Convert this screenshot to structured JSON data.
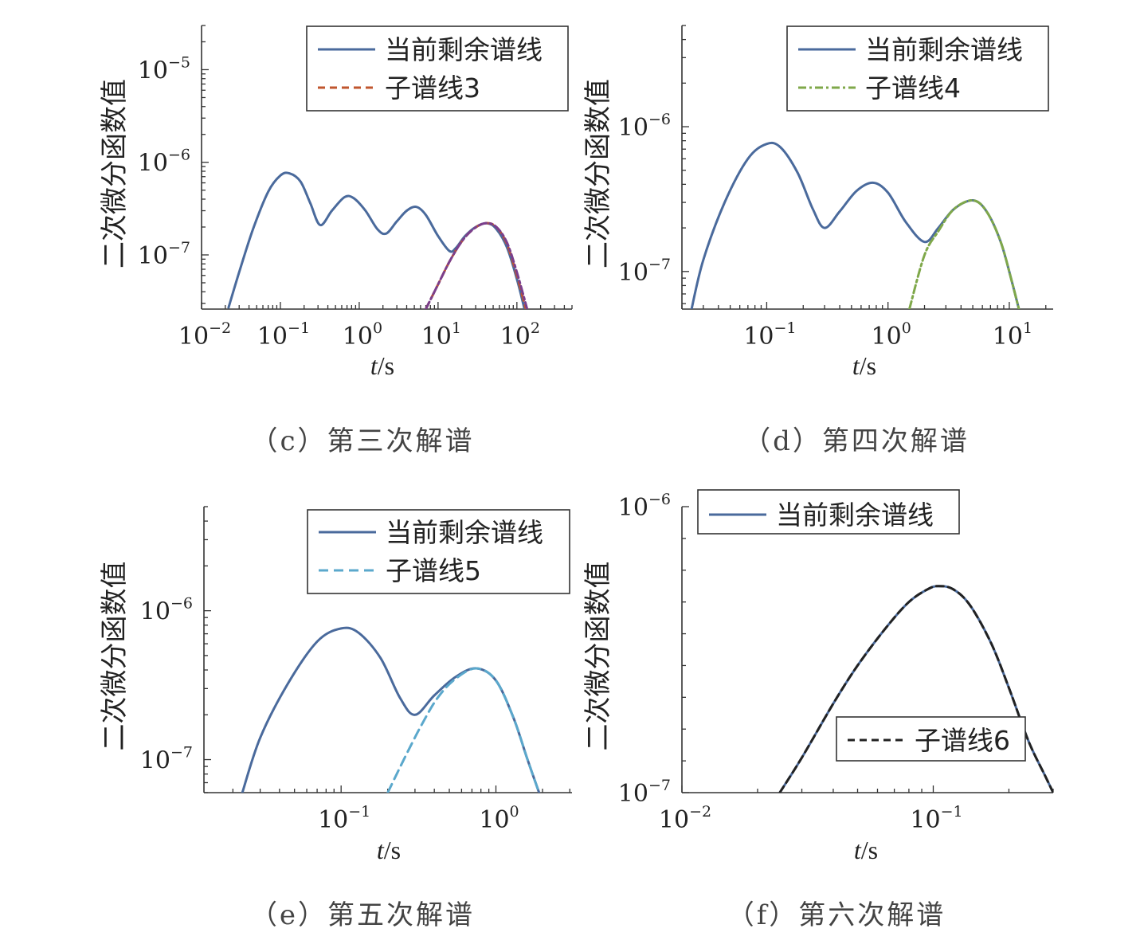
{
  "figure": {
    "subplots": [
      {
        "caption": "（c）第三次解谱",
        "ylabel": "二次微分函数值",
        "xlabel": "t/s",
        "legend_position": "top-right"
      },
      {
        "caption": "（d）第四次解谱",
        "ylabel": "二次微分函数值",
        "xlabel": "t/s",
        "legend_position": "top-right"
      },
      {
        "caption": "（e）第五次解谱",
        "ylabel": "二次微分函数值",
        "xlabel": "t/s",
        "legend_position": "top-right"
      },
      {
        "caption": "（f）第六次解谱",
        "ylabel": "二次微分函数值",
        "xlabel": "t/s",
        "legend_position": "top-left / bottom-right"
      }
    ]
  },
  "chart_data": [
    {
      "type": "line",
      "title": "（c）第三次解谱",
      "xlabel": "t/s",
      "ylabel": "二次微分函数值",
      "xscale": "log",
      "yscale": "log",
      "xlim": [
        0.01,
        500
      ],
      "ylim": [
        2.6e-08,
        3e-05
      ],
      "xticks": [
        0.01,
        0.1,
        1,
        10,
        100
      ],
      "xtick_labels": [
        {
          "base": "10",
          "exp": "−2"
        },
        {
          "base": "10",
          "exp": "−1"
        },
        {
          "base": "10",
          "exp": "0"
        },
        {
          "base": "10",
          "exp": "1"
        },
        {
          "base": "10",
          "exp": "2"
        }
      ],
      "yticks": [
        1e-07,
        1e-06,
        1e-05
      ],
      "ytick_labels": [
        {
          "base": "10",
          "exp": "−7"
        },
        {
          "base": "10",
          "exp": "−6"
        },
        {
          "base": "10",
          "exp": "−5"
        }
      ],
      "legend": [
        "当前剩余谱线",
        "子谱线3"
      ],
      "series": [
        {
          "name": "当前剩余谱线",
          "color": "#4a6a9c",
          "dash": "",
          "x": [
            0.022,
            0.03,
            0.045,
            0.07,
            0.1,
            0.13,
            0.18,
            0.24,
            0.32,
            0.45,
            0.65,
            0.85,
            1.2,
            1.7,
            2.2,
            3.0,
            4.0,
            5.3,
            7.0,
            10,
            14,
            17,
            22,
            30,
            42,
            55,
            75,
            100,
            125
          ],
          "y": [
            2.7e-08,
            6.5e-08,
            1.9e-07,
            4.8e-07,
            7.2e-07,
            7.6e-07,
            6.2e-07,
            3.6e-07,
            2.1e-07,
            3e-07,
            4.2e-07,
            4.1e-07,
            3e-07,
            1.9e-07,
            1.7e-07,
            2.3e-07,
            3e-07,
            3.3e-07,
            2.7e-07,
            1.6e-07,
            1.1e-07,
            1.2e-07,
            1.6e-07,
            2e-07,
            2.2e-07,
            1.9e-07,
            1.2e-07,
            5.5e-08,
            2.6e-08
          ]
        },
        {
          "name": "子谱线3",
          "color": "#c0562e",
          "dash": "9 6",
          "x": [
            7.0,
            10,
            14,
            20,
            28,
            40,
            55,
            75,
            100,
            130
          ],
          "y": [
            2.6e-08,
            4.8e-08,
            8.5e-08,
            1.4e-07,
            1.9e-07,
            2.2e-07,
            2e-07,
            1.3e-07,
            6e-08,
            2.6e-08
          ]
        },
        {
          "name": "",
          "color": "#7b3f8c",
          "dash": "10 4 3 4",
          "x": [
            7.0,
            10,
            14,
            20,
            28,
            40,
            55,
            75,
            100,
            135
          ],
          "y": [
            2.6e-08,
            4.8e-08,
            8.5e-08,
            1.4e-07,
            1.9e-07,
            2.2e-07,
            2e-07,
            1.35e-07,
            6.5e-08,
            2.6e-08
          ]
        }
      ]
    },
    {
      "type": "line",
      "title": "（d）第四次解谱",
      "xlabel": "t/s",
      "ylabel": "二次微分函数值",
      "xscale": "log",
      "yscale": "log",
      "xlim": [
        0.02,
        23
      ],
      "ylim": [
        5.5e-08,
        5e-06
      ],
      "xticks": [
        0.1,
        1,
        10
      ],
      "xtick_labels": [
        {
          "base": "10",
          "exp": "−1"
        },
        {
          "base": "10",
          "exp": "0"
        },
        {
          "base": "10",
          "exp": "1"
        }
      ],
      "yticks": [
        1e-07,
        1e-06
      ],
      "ytick_labels": [
        {
          "base": "10",
          "exp": "−7"
        },
        {
          "base": "10",
          "exp": "−6"
        }
      ],
      "legend": [
        "当前剩余谱线",
        "子谱线4"
      ],
      "series": [
        {
          "name": "当前剩余谱线",
          "color": "#4a6a9c",
          "dash": "",
          "x": [
            0.024,
            0.03,
            0.045,
            0.07,
            0.1,
            0.13,
            0.18,
            0.24,
            0.3,
            0.4,
            0.55,
            0.75,
            1.0,
            1.4,
            2.0,
            2.6,
            3.5,
            5.0,
            6.5,
            8.5,
            10.5,
            12
          ],
          "y": [
            5.5e-08,
            1.2e-07,
            3e-07,
            6e-07,
            7.6e-07,
            7.2e-07,
            4.8e-07,
            2.7e-07,
            2e-07,
            2.6e-07,
            3.6e-07,
            4.1e-07,
            3.5e-07,
            2.2e-07,
            1.6e-07,
            2e-07,
            2.7e-07,
            3.1e-07,
            2.6e-07,
            1.6e-07,
            8.5e-08,
            5.5e-08
          ]
        },
        {
          "name": "子谱线4",
          "color": "#7fa84a",
          "dash": "10 4 3 4",
          "x": [
            1.5,
            2.0,
            2.6,
            3.5,
            5.0,
            6.5,
            8.5,
            10.5,
            12
          ],
          "y": [
            5.5e-08,
            1.3e-07,
            1.9e-07,
            2.7e-07,
            3.1e-07,
            2.6e-07,
            1.6e-07,
            8.5e-08,
            5.5e-08
          ]
        }
      ]
    },
    {
      "type": "line",
      "title": "（e）第五次解谱",
      "xlabel": "t/s",
      "ylabel": "二次微分函数值",
      "xscale": "log",
      "yscale": "log",
      "xlim": [
        0.013,
        3.1
      ],
      "ylim": [
        6e-08,
        5e-06
      ],
      "xticks": [
        0.1,
        1
      ],
      "xtick_labels": [
        {
          "base": "10",
          "exp": "−1"
        },
        {
          "base": "10",
          "exp": "0"
        }
      ],
      "yticks": [
        1e-07,
        1e-06
      ],
      "ytick_labels": [
        {
          "base": "10",
          "exp": "−7"
        },
        {
          "base": "10",
          "exp": "−6"
        }
      ],
      "legend": [
        "当前剩余谱线",
        "子谱线5"
      ],
      "series": [
        {
          "name": "当前剩余谱线",
          "color": "#4a6a9c",
          "dash": "",
          "x": [
            0.023,
            0.03,
            0.045,
            0.07,
            0.1,
            0.13,
            0.18,
            0.24,
            0.3,
            0.4,
            0.55,
            0.75,
            1.0,
            1.3,
            1.6,
            1.9
          ],
          "y": [
            6e-08,
            1.4e-07,
            3.2e-07,
            6.2e-07,
            7.6e-07,
            7.1e-07,
            4.8e-07,
            2.6e-07,
            2e-07,
            2.7e-07,
            3.6e-07,
            4.1e-07,
            3.4e-07,
            1.9e-07,
            1e-07,
            6e-08
          ]
        },
        {
          "name": "子谱线5",
          "color": "#5ba8cc",
          "dash": "12 7",
          "x": [
            0.2,
            0.26,
            0.33,
            0.42,
            0.55,
            0.75,
            1.0,
            1.3,
            1.6,
            1.9
          ],
          "y": [
            6e-08,
            1.05e-07,
            1.7e-07,
            2.6e-07,
            3.5e-07,
            4.1e-07,
            3.4e-07,
            1.9e-07,
            1e-07,
            6e-08
          ]
        }
      ]
    },
    {
      "type": "line",
      "title": "（f）第六次解谱",
      "xlabel": "t/s",
      "ylabel": "二次微分函数值",
      "xscale": "log",
      "yscale": "linear",
      "xlim": [
        0.01,
        0.3
      ],
      "ylim": [
        1e-07,
        1e-06
      ],
      "xticks": [
        0.01,
        0.1
      ],
      "xtick_labels": [
        {
          "base": "10",
          "exp": "−2"
        },
        {
          "base": "10",
          "exp": "−1"
        }
      ],
      "yticks": [
        1e-07,
        1e-06
      ],
      "ytick_labels": [
        {
          "base": "10",
          "exp": "−7"
        },
        {
          "base": "10",
          "exp": "−6"
        }
      ],
      "legend": [
        "当前剩余谱线",
        "子谱线6"
      ],
      "series": [
        {
          "name": "当前剩余谱线",
          "color": "#4a6a9c",
          "dash": "",
          "x": [
            0.0245,
            0.03,
            0.04,
            0.05,
            0.065,
            0.08,
            0.095,
            0.105,
            0.12,
            0.14,
            0.17,
            0.2,
            0.24,
            0.28,
            0.3
          ],
          "y": [
            1e-07,
            2.1e-07,
            3.8e-07,
            5e-07,
            6.2e-07,
            7e-07,
            7.4e-07,
            7.5e-07,
            7.4e-07,
            6.9e-07,
            5.7e-07,
            4.3e-07,
            2.6e-07,
            1.5e-07,
            1e-07
          ]
        },
        {
          "name": "子谱线6",
          "color": "#222222",
          "dash": "9 6",
          "x": [
            0.0245,
            0.03,
            0.04,
            0.05,
            0.065,
            0.08,
            0.095,
            0.105,
            0.12,
            0.14,
            0.17,
            0.2,
            0.24,
            0.28,
            0.3
          ],
          "y": [
            1e-07,
            2.1e-07,
            3.8e-07,
            5e-07,
            6.2e-07,
            7e-07,
            7.4e-07,
            7.5e-07,
            7.4e-07,
            6.9e-07,
            5.7e-07,
            4.3e-07,
            2.6e-07,
            1.5e-07,
            1e-07
          ]
        }
      ]
    }
  ]
}
